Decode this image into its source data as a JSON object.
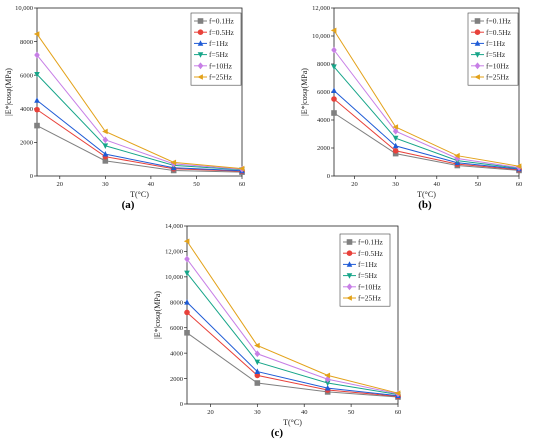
{
  "chart_data": [
    {
      "type": "line",
      "panel_label": "(a)",
      "xlabel": "T(°C)",
      "ylabel": "|E*|cosφ(MPa)",
      "x": [
        15,
        30,
        45,
        60
      ],
      "xlim": [
        15,
        60
      ],
      "ylim": [
        0,
        10000
      ],
      "xticks": [
        20,
        30,
        40,
        50,
        60
      ],
      "yticks": [
        0,
        2000,
        4000,
        6000,
        8000,
        10000
      ],
      "ytick_labels": [
        "0",
        "2000",
        "4000",
        "6000",
        "8000",
        "10,000"
      ],
      "legend_position": "top-right",
      "series": [
        {
          "name": "f=0.1Hz",
          "color": "#808080",
          "marker": "square",
          "values": [
            3000,
            900,
            330,
            230
          ]
        },
        {
          "name": "f=0.5Hz",
          "color": "#e8413a",
          "marker": "circle",
          "values": [
            3950,
            1150,
            430,
            280
          ]
        },
        {
          "name": "f=1Hz",
          "color": "#1f5bd6",
          "marker": "triangle-up",
          "values": [
            4500,
            1300,
            490,
            310
          ]
        },
        {
          "name": "f=5Hz",
          "color": "#17a589",
          "marker": "triangle-down",
          "values": [
            6050,
            1800,
            630,
            370
          ]
        },
        {
          "name": "f=10Hz",
          "color": "#c77fe6",
          "marker": "diamond",
          "values": [
            7200,
            2150,
            720,
            400
          ]
        },
        {
          "name": "f=25Hz",
          "color": "#e3a21a",
          "marker": "triangle-left",
          "values": [
            8450,
            2650,
            810,
            440
          ]
        }
      ]
    },
    {
      "type": "line",
      "panel_label": "(b)",
      "xlabel": "T(°C)",
      "ylabel": "|E*|cosφ(MPa)",
      "x": [
        15,
        30,
        45,
        60
      ],
      "xlim": [
        15,
        60
      ],
      "ylim": [
        0,
        12000
      ],
      "xticks": [
        20,
        30,
        40,
        50,
        60
      ],
      "yticks": [
        0,
        2000,
        4000,
        6000,
        8000,
        10000,
        12000
      ],
      "ytick_labels": [
        "0",
        "2000",
        "4000",
        "6000",
        "8000",
        "10,000",
        "12,000"
      ],
      "legend_position": "top-right",
      "series": [
        {
          "name": "f=0.1Hz",
          "color": "#808080",
          "marker": "square",
          "values": [
            4500,
            1600,
            750,
            400
          ]
        },
        {
          "name": "f=0.5Hz",
          "color": "#e8413a",
          "marker": "circle",
          "values": [
            5500,
            1800,
            850,
            450
          ]
        },
        {
          "name": "f=1Hz",
          "color": "#1f5bd6",
          "marker": "triangle-up",
          "values": [
            6100,
            2150,
            950,
            500
          ]
        },
        {
          "name": "f=5Hz",
          "color": "#17a589",
          "marker": "triangle-down",
          "values": [
            7800,
            2700,
            1100,
            550
          ]
        },
        {
          "name": "f=10Hz",
          "color": "#c77fe6",
          "marker": "diamond",
          "values": [
            9000,
            3200,
            1250,
            600
          ]
        },
        {
          "name": "f=25Hz",
          "color": "#e3a21a",
          "marker": "triangle-left",
          "values": [
            10400,
            3500,
            1450,
            700
          ]
        }
      ]
    },
    {
      "type": "line",
      "panel_label": "(c)",
      "xlabel": "T(°C)",
      "ylabel": "|E*|cosφ(MPa)",
      "x": [
        15,
        30,
        45,
        60
      ],
      "xlim": [
        15,
        60
      ],
      "ylim": [
        0,
        14000
      ],
      "xticks": [
        20,
        30,
        40,
        50,
        60
      ],
      "yticks": [
        0,
        2000,
        4000,
        6000,
        8000,
        10000,
        12000,
        14000
      ],
      "ytick_labels": [
        "0",
        "2000",
        "4000",
        "6000",
        "8000",
        "10,000",
        "12,000",
        "14,000"
      ],
      "legend_position": "top-right",
      "series": [
        {
          "name": "f=0.1Hz",
          "color": "#808080",
          "marker": "square",
          "values": [
            5600,
            1650,
            950,
            550
          ]
        },
        {
          "name": "f=0.5Hz",
          "color": "#e8413a",
          "marker": "circle",
          "values": [
            7200,
            2250,
            1100,
            600
          ]
        },
        {
          "name": "f=1Hz",
          "color": "#1f5bd6",
          "marker": "triangle-up",
          "values": [
            8000,
            2550,
            1250,
            650
          ]
        },
        {
          "name": "f=5Hz",
          "color": "#17a589",
          "marker": "triangle-down",
          "values": [
            10300,
            3300,
            1650,
            750
          ]
        },
        {
          "name": "f=10Hz",
          "color": "#c77fe6",
          "marker": "diamond",
          "values": [
            11400,
            3950,
            1950,
            800
          ]
        },
        {
          "name": "f=25Hz",
          "color": "#e3a21a",
          "marker": "triangle-left",
          "values": [
            12800,
            4600,
            2250,
            850
          ]
        }
      ]
    }
  ]
}
